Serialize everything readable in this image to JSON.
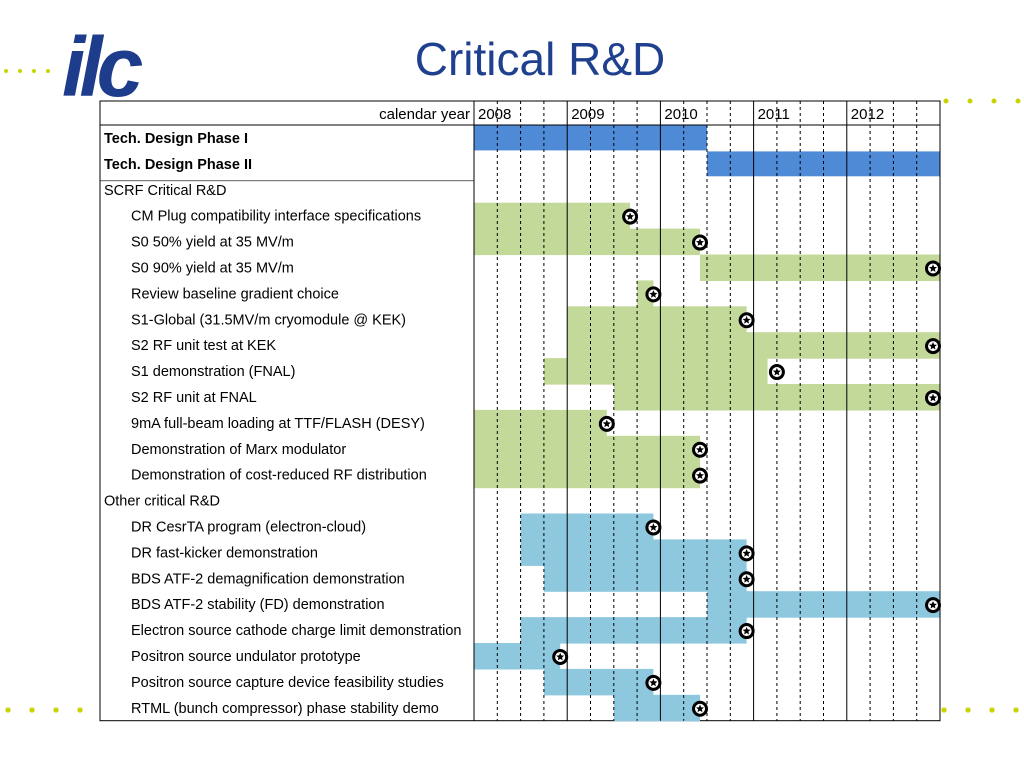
{
  "slide": {
    "title": "Critical R&D",
    "logo_text": "ilc",
    "colors": {
      "title": "#1f3f8f",
      "logo": "#1e3c8c",
      "dots": "#c8d400",
      "phase_bar": "#4f8ad6",
      "scrf_bar": "#c3d99a",
      "other_bar": "#8ec8df"
    }
  },
  "chart_data": {
    "type": "gantt",
    "header_label": "calendar year",
    "years": [
      "2008",
      "2009",
      "2010",
      "2011",
      "2012"
    ],
    "time_unit": "quarter",
    "axis_start_quarter": 0,
    "axis_end_quarter": 20,
    "milestone_symbol": "star-in-circle",
    "rows": [
      {
        "label": "Tech. Design Phase I",
        "bold": true,
        "section": "phase",
        "start": 0,
        "end": 10,
        "milestone": null
      },
      {
        "label": "Tech. Design Phase II",
        "bold": true,
        "section": "phase",
        "start": 10,
        "end": 20,
        "milestone": null
      },
      {
        "label": "SCRF Critical R&D",
        "header": true
      },
      {
        "label": "CM Plug compatibility interface specifications",
        "section": "scrf",
        "start": 0,
        "end": 6.7,
        "milestone": 6.7
      },
      {
        "label": "S0 50% yield at 35 MV/m",
        "section": "scrf",
        "start": 0,
        "end": 9.7,
        "milestone": 9.7
      },
      {
        "label": "S0 90% yield at 35 MV/m",
        "section": "scrf",
        "start": 9.7,
        "end": 20,
        "milestone": 19.7
      },
      {
        "label": "Review baseline gradient choice",
        "section": "scrf",
        "start": 7,
        "end": 7.7,
        "milestone": 7.7
      },
      {
        "label": "S1-Global (31.5MV/m cryomodule @ KEK)",
        "section": "scrf",
        "start": 4,
        "end": 11.7,
        "milestone": 11.7
      },
      {
        "label": "S2 RF unit test at KEK",
        "section": "scrf",
        "start": 4,
        "end": 20,
        "milestone": 19.7
      },
      {
        "label": "S1 demonstration (FNAL)",
        "section": "scrf",
        "start": 3,
        "end": 12.6,
        "milestone": 13
      },
      {
        "label": "S2 RF unit at FNAL",
        "section": "scrf",
        "start": 6,
        "end": 20,
        "milestone": 19.7
      },
      {
        "label": "9mA full-beam loading at TTF/FLASH (DESY)",
        "section": "scrf",
        "start": 0,
        "end": 5.7,
        "milestone": 5.7
      },
      {
        "label": "Demonstration of Marx modulator",
        "section": "scrf",
        "start": 0,
        "end": 9.7,
        "milestone": 9.7
      },
      {
        "label": "Demonstration of cost-reduced RF distribution",
        "section": "scrf",
        "start": 0,
        "end": 9.7,
        "milestone": 9.7
      },
      {
        "label": "Other critical R&D",
        "header": true
      },
      {
        "label": "DR CesrTA program (electron-cloud)",
        "section": "other",
        "start": 2,
        "end": 7.7,
        "milestone": 7.7
      },
      {
        "label": "DR fast-kicker demonstration",
        "section": "other",
        "start": 2,
        "end": 11.7,
        "milestone": 11.7
      },
      {
        "label": "BDS ATF-2 demagnification demonstration",
        "section": "other",
        "start": 3,
        "end": 11.7,
        "milestone": 11.7
      },
      {
        "label": "BDS ATF-2 stability (FD) demonstration",
        "section": "other",
        "start": 10,
        "end": 20,
        "milestone": 19.7
      },
      {
        "label": "Electron source cathode charge limit demonstration",
        "section": "other",
        "start": 2,
        "end": 11.7,
        "milestone": 11.7
      },
      {
        "label": "Positron source undulator prototype",
        "section": "other",
        "start": 0,
        "end": 3.7,
        "milestone": 3.7
      },
      {
        "label": "Positron source capture device feasibility studies",
        "section": "other",
        "start": 3,
        "end": 7.7,
        "milestone": 7.7
      },
      {
        "label": "RTML (bunch compressor) phase stability demo",
        "section": "other",
        "start": 6,
        "end": 9.7,
        "milestone": 9.7
      }
    ]
  }
}
